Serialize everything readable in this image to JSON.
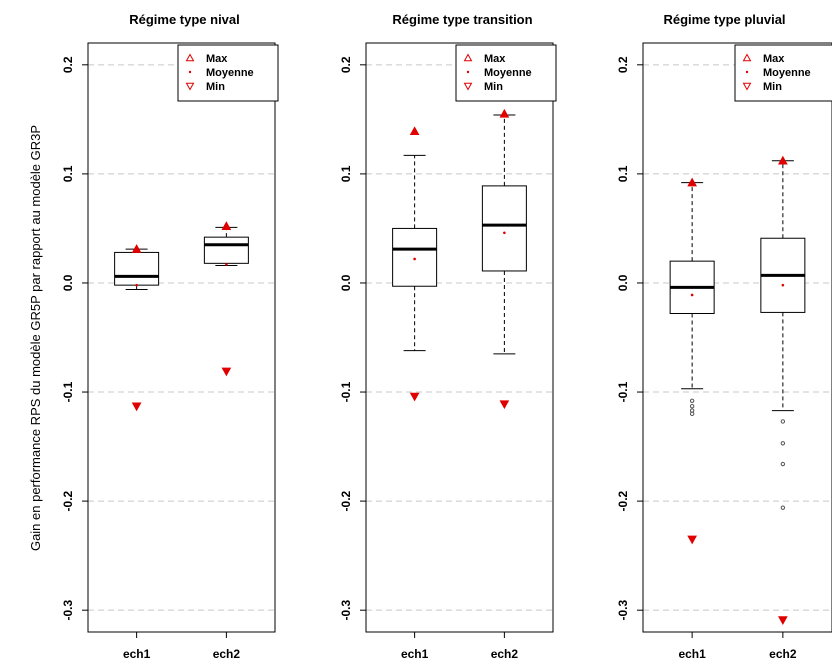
{
  "figure": {
    "ylabel": "Gain en performance RPS du modèle GR5P par rapport au modèle GR3P"
  },
  "chart_data": [
    {
      "type": "box",
      "title": "Régime type nival",
      "categories": [
        "ech1",
        "ech2"
      ],
      "ylim": [
        -0.32,
        0.22
      ],
      "yticks": [
        0.2,
        0.1,
        0.0,
        -0.1,
        -0.2,
        -0.3
      ],
      "ytick_labels": [
        "0.2",
        "0.1",
        "0.0",
        "-0.1",
        "-0.2",
        "-0.3"
      ],
      "grid": "horizontal dashed",
      "legend_position": "top-right",
      "legend": [
        {
          "symbol": "triangle-up-open",
          "label": "Max"
        },
        {
          "symbol": "dot",
          "label": "Moyenne"
        },
        {
          "symbol": "triangle-down-open",
          "label": "Min"
        }
      ],
      "boxes": [
        {
          "category": "ech1",
          "whisker_low": -0.006,
          "q1": -0.002,
          "median": 0.006,
          "q3": 0.028,
          "whisker_high": 0.031,
          "outliers": [],
          "max": 0.031,
          "mean": -0.002,
          "min": -0.113
        },
        {
          "category": "ech2",
          "whisker_low": 0.016,
          "q1": 0.018,
          "median": 0.035,
          "q3": 0.042,
          "whisker_high": 0.051,
          "outliers": [],
          "max": 0.052,
          "mean": 0.017,
          "min": -0.081
        }
      ]
    },
    {
      "type": "box",
      "title": "Régime type transition",
      "categories": [
        "ech1",
        "ech2"
      ],
      "ylim": [
        -0.32,
        0.22
      ],
      "yticks": [
        0.2,
        0.1,
        0.0,
        -0.1,
        -0.2,
        -0.3
      ],
      "ytick_labels": [
        "0.2",
        "0.1",
        "0.0",
        "-0.1",
        "-0.2",
        "-0.3"
      ],
      "grid": "horizontal dashed",
      "legend_position": "top-right",
      "legend": [
        {
          "symbol": "triangle-up-open",
          "label": "Max"
        },
        {
          "symbol": "dot",
          "label": "Moyenne"
        },
        {
          "symbol": "triangle-down-open",
          "label": "Min"
        }
      ],
      "boxes": [
        {
          "category": "ech1",
          "whisker_low": -0.062,
          "q1": -0.003,
          "median": 0.031,
          "q3": 0.05,
          "whisker_high": 0.117,
          "outliers": [],
          "max": 0.139,
          "mean": 0.022,
          "min": -0.104
        },
        {
          "category": "ech2",
          "whisker_low": -0.065,
          "q1": 0.011,
          "median": 0.053,
          "q3": 0.089,
          "whisker_high": 0.154,
          "outliers": [],
          "max": 0.155,
          "mean": 0.046,
          "min": -0.111
        }
      ]
    },
    {
      "type": "box",
      "title": "Régime type pluvial",
      "categories": [
        "ech1",
        "ech2"
      ],
      "ylim": [
        -0.32,
        0.22
      ],
      "yticks": [
        0.2,
        0.1,
        0.0,
        -0.1,
        -0.2,
        -0.3
      ],
      "ytick_labels": [
        "0.2",
        "0.1",
        "0.0",
        "-0.1",
        "-0.2",
        "-0.3"
      ],
      "grid": "horizontal dashed",
      "legend_position": "top-right",
      "legend": [
        {
          "symbol": "triangle-up-open",
          "label": "Max"
        },
        {
          "symbol": "dot",
          "label": "Moyenne"
        },
        {
          "symbol": "triangle-down-open",
          "label": "Min"
        }
      ],
      "boxes": [
        {
          "category": "ech1",
          "whisker_low": -0.097,
          "q1": -0.028,
          "median": -0.004,
          "q3": 0.02,
          "whisker_high": 0.092,
          "outliers": [
            -0.108,
            -0.113,
            -0.117,
            -0.12
          ],
          "max": 0.092,
          "mean": -0.011,
          "min": -0.235
        },
        {
          "category": "ech2",
          "whisker_low": -0.117,
          "q1": -0.027,
          "median": 0.007,
          "q3": 0.041,
          "whisker_high": 0.112,
          "outliers": [
            -0.127,
            -0.147,
            -0.166,
            -0.206
          ],
          "max": 0.112,
          "mean": -0.002,
          "min": -0.309
        }
      ]
    }
  ]
}
